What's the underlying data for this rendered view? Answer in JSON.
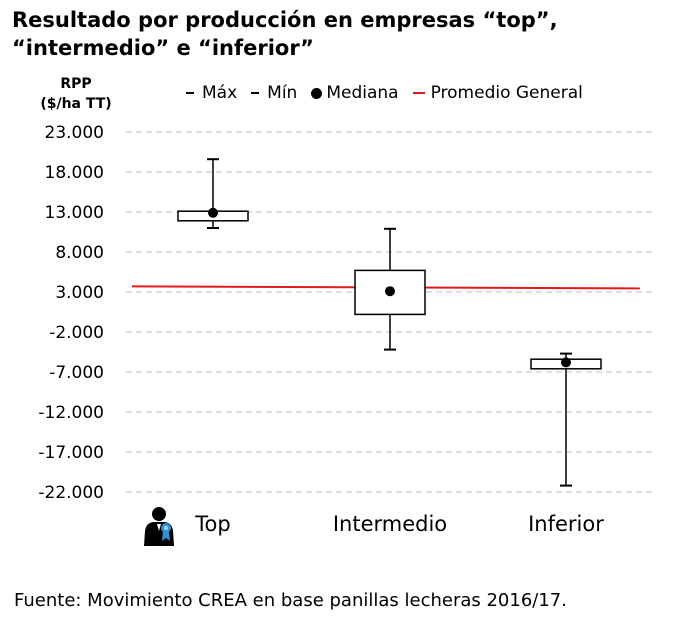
{
  "title_lines": [
    "Resultado por producción en empresas “top”,",
    "“intermedio” e “inferior”"
  ],
  "ylabel_lines": [
    "RPP",
    "($/ha TT)"
  ],
  "legend": {
    "max": "Máx",
    "min": "Mín",
    "median": "Mediana",
    "average": "Promedio General"
  },
  "source": "Fuente: Movimiento CREA en base panillas lecheras 2016/17.",
  "colors": {
    "average_line": "#e31a1c",
    "grid": "#bfbfbf",
    "box": "#000000"
  },
  "icon": "user-badge-icon",
  "chart_data": {
    "type": "boxplot",
    "ylim": [
      -22000,
      23000
    ],
    "yticks": [
      23000,
      18000,
      13000,
      8000,
      3000,
      -2000,
      -7000,
      -12000,
      -17000,
      -22000
    ],
    "ytick_labels": [
      "23.000",
      "18.000",
      "13.000",
      "8.000",
      "3.000",
      "-2.000",
      "-7.000",
      "-12.000",
      "-17.000",
      "-22.000"
    ],
    "grid": true,
    "legend_position": "top",
    "categories": [
      "Top",
      "Intermedio",
      "Inferior"
    ],
    "boxes": [
      {
        "category": "Top",
        "max": 19600,
        "q3": 13100,
        "median": 12900,
        "q1": 11900,
        "min": 11000
      },
      {
        "category": "Intermedio",
        "max": 10900,
        "q3": 5700,
        "median": 3100,
        "q1": 200,
        "min": -4200
      },
      {
        "category": "Inferior",
        "max": -4700,
        "q3": -5400,
        "median": -5800,
        "q1": -6600,
        "min": -21200
      }
    ],
    "promedio_general": 3700
  }
}
